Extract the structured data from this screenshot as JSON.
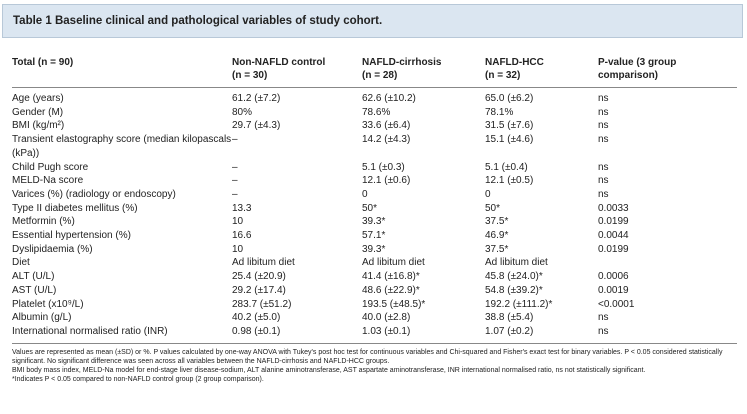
{
  "title": "Table 1 Baseline clinical and pathological variables of study cohort.",
  "table": {
    "header": [
      [
        "Total (n = 90)"
      ],
      [
        "Non-NAFLD control",
        "(n = 30)"
      ],
      [
        "NAFLD-cirrhosis",
        "(n = 28)"
      ],
      [
        "NAFLD-HCC",
        "(n = 32)"
      ],
      [
        "P-value (3 group",
        "comparison)"
      ]
    ],
    "rows": [
      [
        "Age (years)",
        "61.2 (±7.2)",
        "62.6 (±10.2)",
        "65.0 (±6.2)",
        "ns"
      ],
      [
        "Gender (M)",
        "80%",
        "78.6%",
        "78.1%",
        "ns"
      ],
      [
        "BMI (kg/m²)",
        "29.7 (±4.3)",
        "33.6 (±6.4)",
        "31.5 (±7.6)",
        "ns"
      ],
      [
        "Transient elastography score (median kilopascals (kPa))",
        "–",
        "14.2 (±4.3)",
        "15.1 (±4.6)",
        "ns"
      ],
      [
        "Child Pugh score",
        "–",
        "5.1 (±0.3)",
        "5.1 (±0.4)",
        "ns"
      ],
      [
        "MELD-Na score",
        "–",
        "12.1 (±0.6)",
        "12.1 (±0.5)",
        "ns"
      ],
      [
        "Varices (%) (radiology or endoscopy)",
        "–",
        "0",
        "0",
        "ns"
      ],
      [
        "Type II diabetes mellitus (%)",
        "13.3",
        "50*",
        "50*",
        "0.0033"
      ],
      [
        "Metformin (%)",
        "10",
        "39.3*",
        "37.5*",
        "0.0199"
      ],
      [
        "Essential hypertension (%)",
        "16.6",
        "57.1*",
        "46.9*",
        "0.0044"
      ],
      [
        "Dyslipidaemia (%)",
        "10",
        "39.3*",
        "37.5*",
        "0.0199"
      ],
      [
        "Diet",
        "Ad libitum diet",
        "Ad libitum diet",
        "Ad libitum diet"
      ],
      [
        "ALT (U/L)",
        "25.4 (±20.9)",
        "41.4 (±16.8)*",
        "45.8 (±24.0)*",
        "0.0006"
      ],
      [
        "AST (U/L)",
        "29.2 (±17.4)",
        "48.6 (±22.9)*",
        "54.8 (±39.2)*",
        "0.0019"
      ],
      [
        "Platelet (x10⁹/L)",
        "283.7 (±51.2)",
        "193.5 (±48.5)*",
        "192.2 (±111.2)*",
        "<0.0001"
      ],
      [
        "Albumin (g/L)",
        "40.2 (±5.0)",
        "40.0 (±2.8)",
        "38.8 (±5.4)",
        "ns"
      ],
      [
        "International normalised ratio (INR)",
        "0.98 (±0.1)",
        "1.03 (±0.1)",
        "1.07 (±0.2)",
        "ns"
      ]
    ]
  },
  "footnotes": [
    "Values are represented as mean (±SD) or %. P values calculated by one-way ANOVA with Tukey's post hoc test for continuous variables and Chi-squared and Fisher's exact test for binary variables. P < 0.05 considered statistically significant. No significant difference was seen across all variables between the NAFLD-cirrhosis and NAFLD-HCC groups.",
    "BMI body mass index, MELD-Na model for end-stage liver disease-sodium, ALT alanine aminotransferase, AST aspartate aminotransferase, INR international normalised ratio, ns not statistically significant.",
    "*Indicates P < 0.05 compared to non-NAFLD control group (2 group comparison)."
  ]
}
